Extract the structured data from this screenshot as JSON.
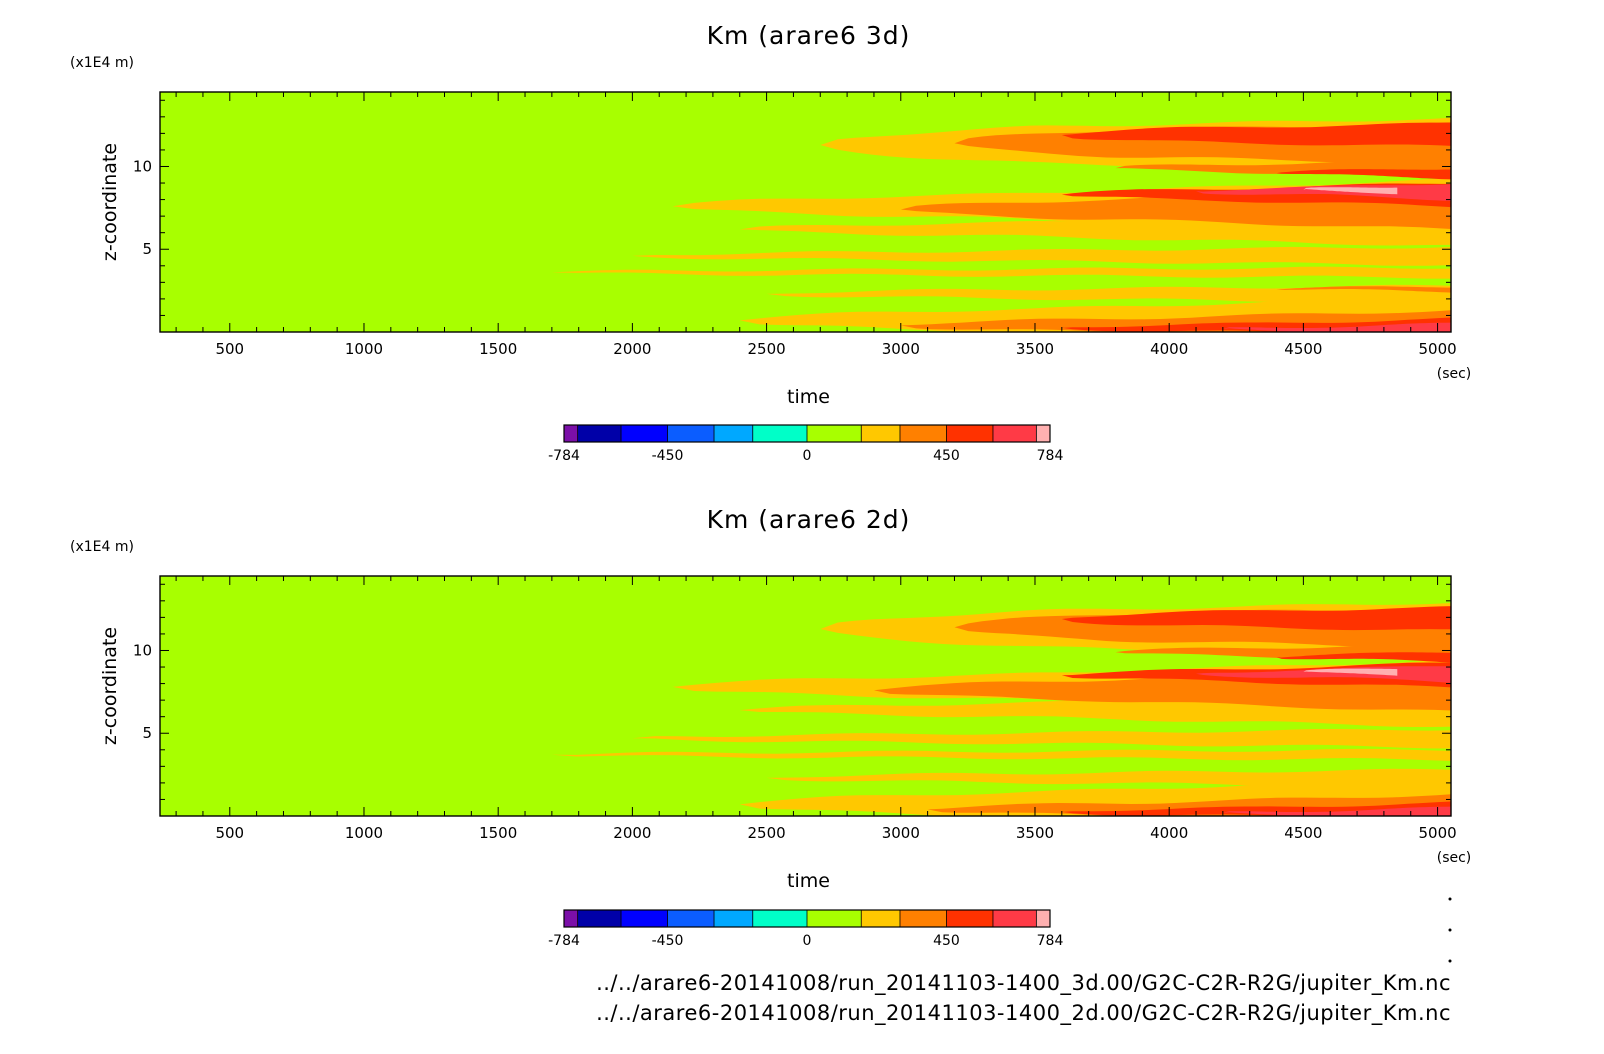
{
  "chart_data": [
    {
      "type": "heatmap",
      "title": "Km (arare6 3d)",
      "xlabel": "time",
      "ylabel": "z-coordinate",
      "x_unit": "(sec)",
      "y_unit": "(x1E4 m)",
      "xlim": [
        240,
        5050
      ],
      "ylim": [
        0,
        14.5
      ],
      "xticks": [
        "500",
        "1000",
        "1500",
        "2000",
        "2500",
        "3000",
        "3500",
        "4000",
        "4500",
        "5000"
      ],
      "yticks": [
        "5",
        "10"
      ],
      "xtick_values": [
        500,
        1000,
        1500,
        2000,
        2500,
        3000,
        3500,
        4000,
        4500,
        5000
      ],
      "ytick_values": [
        5,
        10
      ],
      "background_level": 1,
      "bands": [
        {
          "level": 2,
          "z": 0.7,
          "half_width": 0.7,
          "start": 2400,
          "peak": 3500,
          "end": 5050,
          "max_extra": 0.7
        },
        {
          "level": 3,
          "z": 0.4,
          "half_width": 0.4,
          "start": 3000,
          "peak": 3800,
          "end": 5050,
          "max_extra": 0.5
        },
        {
          "level": 4,
          "z": 0.25,
          "half_width": 0.25,
          "start": 3600,
          "peak": 4300,
          "end": 5050,
          "max_extra": 0.3
        },
        {
          "level": 5,
          "z": 0.2,
          "half_width": 0.15,
          "start": 4200,
          "peak": 4700,
          "end": 5050,
          "max_extra": 0.15
        },
        {
          "level": 2,
          "z": 2.3,
          "half_width": 0.3,
          "start": 2500,
          "peak": 3600,
          "end": 5050,
          "max_extra": 0.2
        },
        {
          "level": 3,
          "z": 2.6,
          "half_width": 0.1,
          "start": 4400,
          "peak": 4800,
          "end": 5050,
          "max_extra": 0.05
        },
        {
          "level": 2,
          "z": 3.6,
          "half_width": 0.15,
          "start": 1700,
          "peak": 2600,
          "end": 5050,
          "max_extra": 0.15
        },
        {
          "level": 2,
          "z": 4.6,
          "half_width": 0.25,
          "start": 2000,
          "peak": 3000,
          "end": 5050,
          "max_extra": 0.3
        },
        {
          "level": 2,
          "z": 6.2,
          "half_width": 0.4,
          "start": 2400,
          "peak": 3400,
          "end": 5050,
          "max_extra": 0.6
        },
        {
          "level": 2,
          "z": 7.6,
          "half_width": 0.7,
          "start": 2150,
          "peak": 3300,
          "end": 5050,
          "max_extra": 0.9
        },
        {
          "level": 3,
          "z": 7.4,
          "half_width": 0.6,
          "start": 3000,
          "peak": 3800,
          "end": 5050,
          "max_extra": 0.6
        },
        {
          "level": 4,
          "z": 8.3,
          "half_width": 0.35,
          "start": 3600,
          "peak": 4200,
          "end": 5050,
          "max_extra": 0.35
        },
        {
          "level": 5,
          "z": 8.5,
          "half_width": 0.25,
          "start": 4100,
          "peak": 4600,
          "end": 5050,
          "max_extra": 0.25
        },
        {
          "level": 6,
          "z": 8.6,
          "half_width": 0.15,
          "start": 4500,
          "peak": 4700,
          "end": 4850,
          "max_extra": 0.05
        },
        {
          "level": 2,
          "z": 11.3,
          "half_width": 1.1,
          "start": 2700,
          "peak": 3500,
          "end": 5050,
          "max_extra": 0.5
        },
        {
          "level": 3,
          "z": 11.4,
          "half_width": 0.8,
          "start": 3200,
          "peak": 3800,
          "end": 5050,
          "max_extra": 0.4
        },
        {
          "level": 4,
          "z": 11.9,
          "half_width": 0.4,
          "start": 3600,
          "peak": 4000,
          "end": 5050,
          "max_extra": 0.3
        },
        {
          "level": 3,
          "z": 9.9,
          "half_width": 0.3,
          "start": 3800,
          "peak": 4500,
          "end": 5050,
          "max_extra": 0.2
        },
        {
          "level": 4,
          "z": 9.6,
          "half_width": 0.2,
          "start": 4400,
          "peak": 4800,
          "end": 5050,
          "max_extra": 0.1
        }
      ],
      "colorbar": {
        "ticks": [
          "-784",
          "-450",
          "0",
          "450",
          "784"
        ],
        "tick_values": [
          -784,
          -450,
          0,
          450,
          784
        ],
        "boundaries": [
          -784,
          -740,
          -600,
          -450,
          -300,
          -175,
          0,
          175,
          300,
          450,
          600,
          740,
          784
        ],
        "colors": [
          "#7b0fa8",
          "#0000a8",
          "#0000ff",
          "#0b5dff",
          "#00a8ff",
          "#00ffc8",
          "#a8ff00",
          "#ffc800",
          "#ff8000",
          "#ff3200",
          "#ff3a46",
          "#ffb0b0"
        ]
      }
    },
    {
      "type": "heatmap",
      "title": "Km (arare6 2d)",
      "xlabel": "time",
      "ylabel": "z-coordinate",
      "x_unit": "(sec)",
      "y_unit": "(x1E4 m)",
      "xlim": [
        240,
        5050
      ],
      "ylim": [
        0,
        14.5
      ],
      "xticks": [
        "500",
        "1000",
        "1500",
        "2000",
        "2500",
        "3000",
        "3500",
        "4000",
        "4500",
        "5000"
      ],
      "yticks": [
        "5",
        "10"
      ],
      "xtick_values": [
        500,
        1000,
        1500,
        2000,
        2500,
        3000,
        3500,
        4000,
        4500,
        5000
      ],
      "ytick_values": [
        5,
        10
      ],
      "background_level": 1,
      "bands": [
        {
          "level": 2,
          "z": 0.7,
          "half_width": 0.75,
          "start": 2400,
          "peak": 3500,
          "end": 5050,
          "max_extra": 0.8
        },
        {
          "level": 3,
          "z": 0.4,
          "half_width": 0.4,
          "start": 3100,
          "peak": 3900,
          "end": 5050,
          "max_extra": 0.5
        },
        {
          "level": 4,
          "z": 0.25,
          "half_width": 0.25,
          "start": 3600,
          "peak": 4300,
          "end": 5050,
          "max_extra": 0.3
        },
        {
          "level": 5,
          "z": 0.2,
          "half_width": 0.15,
          "start": 4200,
          "peak": 4700,
          "end": 5050,
          "max_extra": 0.15
        },
        {
          "level": 2,
          "z": 2.3,
          "half_width": 0.3,
          "start": 2500,
          "peak": 3600,
          "end": 5050,
          "max_extra": 0.2
        },
        {
          "level": 2,
          "z": 3.7,
          "half_width": 0.15,
          "start": 1700,
          "peak": 2600,
          "end": 5050,
          "max_extra": 0.15
        },
        {
          "level": 2,
          "z": 4.7,
          "half_width": 0.25,
          "start": 2000,
          "peak": 3000,
          "end": 5050,
          "max_extra": 0.3
        },
        {
          "level": 2,
          "z": 6.4,
          "half_width": 0.4,
          "start": 2400,
          "peak": 3400,
          "end": 5050,
          "max_extra": 0.6
        },
        {
          "level": 2,
          "z": 7.8,
          "half_width": 0.7,
          "start": 2150,
          "peak": 3300,
          "end": 5050,
          "max_extra": 0.9
        },
        {
          "level": 3,
          "z": 7.6,
          "half_width": 0.6,
          "start": 2900,
          "peak": 3700,
          "end": 5050,
          "max_extra": 0.7
        },
        {
          "level": 4,
          "z": 8.5,
          "half_width": 0.35,
          "start": 3600,
          "peak": 4200,
          "end": 5050,
          "max_extra": 0.4
        },
        {
          "level": 5,
          "z": 8.6,
          "half_width": 0.25,
          "start": 4100,
          "peak": 4600,
          "end": 5050,
          "max_extra": 0.25
        },
        {
          "level": 6,
          "z": 8.7,
          "half_width": 0.15,
          "start": 4500,
          "peak": 4700,
          "end": 4850,
          "max_extra": 0.05
        },
        {
          "level": 2,
          "z": 11.3,
          "half_width": 1.1,
          "start": 2700,
          "peak": 3500,
          "end": 5050,
          "max_extra": 0.5
        },
        {
          "level": 3,
          "z": 11.4,
          "half_width": 0.8,
          "start": 3200,
          "peak": 3800,
          "end": 5050,
          "max_extra": 0.4
        },
        {
          "level": 4,
          "z": 11.9,
          "half_width": 0.4,
          "start": 3600,
          "peak": 4000,
          "end": 5050,
          "max_extra": 0.3
        },
        {
          "level": 3,
          "z": 9.9,
          "half_width": 0.3,
          "start": 3800,
          "peak": 4500,
          "end": 5050,
          "max_extra": 0.2
        },
        {
          "level": 4,
          "z": 9.6,
          "half_width": 0.2,
          "start": 4400,
          "peak": 4800,
          "end": 5050,
          "max_extra": 0.1
        }
      ],
      "colorbar": {
        "ticks": [
          "-784",
          "-450",
          "0",
          "450",
          "784"
        ],
        "tick_values": [
          -784,
          -450,
          0,
          450,
          784
        ],
        "boundaries": [
          -784,
          -740,
          -600,
          -450,
          -300,
          -175,
          0,
          175,
          300,
          450,
          600,
          740,
          784
        ],
        "colors": [
          "#7b0fa8",
          "#0000a8",
          "#0000ff",
          "#0b5dff",
          "#00a8ff",
          "#00ffc8",
          "#a8ff00",
          "#ffc800",
          "#ff8000",
          "#ff3200",
          "#ff3a46",
          "#ffb0b0"
        ]
      }
    }
  ],
  "footer": {
    "line1": "../../arare6-20141008/run_20141103-1400_3d.00/G2C-C2R-R2G/jupiter_Km.nc",
    "line2": "../../arare6-20141008/run_20141103-1400_2d.00/G2C-C2R-R2G/jupiter_Km.nc"
  }
}
